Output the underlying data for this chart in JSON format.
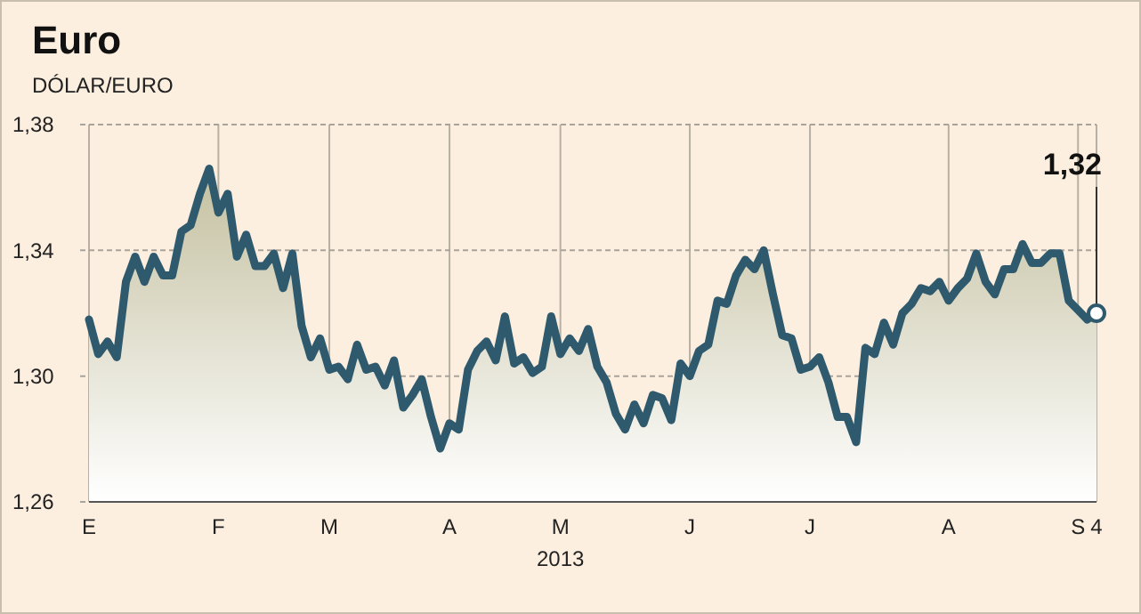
{
  "chart_data": {
    "type": "area",
    "title": "Euro",
    "subtitle": "DÓLAR/EURO",
    "xlabel": "2013",
    "categories": [
      "E",
      null,
      null,
      null,
      null,
      null,
      null,
      null,
      null,
      null,
      null,
      null,
      null,
      null,
      "F",
      null,
      null,
      null,
      null,
      null,
      null,
      null,
      null,
      null,
      null,
      null,
      "M",
      null,
      null,
      null,
      null,
      null,
      null,
      null,
      null,
      null,
      null,
      null,
      null,
      "A",
      null,
      null,
      null,
      null,
      null,
      null,
      null,
      null,
      null,
      null,
      null,
      "M",
      null,
      null,
      null,
      null,
      null,
      null,
      null,
      null,
      null,
      null,
      null,
      null,
      null,
      "J",
      null,
      null,
      null,
      null,
      null,
      null,
      null,
      null,
      null,
      null,
      null,
      null,
      "J",
      null,
      null,
      null,
      null,
      null,
      null,
      null,
      null,
      null,
      null,
      null,
      null,
      null,
      null,
      "A",
      null,
      null,
      null,
      null,
      null,
      null,
      null,
      null,
      null,
      null,
      null,
      null,
      null,
      "S",
      null,
      "4"
    ],
    "series": [
      {
        "color": "#2f5a6e",
        "values": [
          1.318,
          1.307,
          1.311,
          1.306,
          1.33,
          1.338,
          1.33,
          1.338,
          1.332,
          1.332,
          1.346,
          1.348,
          1.358,
          1.366,
          1.352,
          1.358,
          1.338,
          1.345,
          1.335,
          1.335,
          1.339,
          1.328,
          1.339,
          1.316,
          1.306,
          1.312,
          1.302,
          1.303,
          1.299,
          1.31,
          1.302,
          1.303,
          1.297,
          1.305,
          1.29,
          1.294,
          1.299,
          1.287,
          1.277,
          1.285,
          1.283,
          1.302,
          1.308,
          1.311,
          1.305,
          1.319,
          1.304,
          1.306,
          1.301,
          1.303,
          1.319,
          1.307,
          1.312,
          1.308,
          1.315,
          1.303,
          1.298,
          1.288,
          1.283,
          1.291,
          1.285,
          1.294,
          1.293,
          1.286,
          1.304,
          1.3,
          1.308,
          1.31,
          1.324,
          1.323,
          1.332,
          1.337,
          1.334,
          1.34,
          1.326,
          1.313,
          1.312,
          1.302,
          1.303,
          1.306,
          1.298,
          1.287,
          1.287,
          1.279,
          1.309,
          1.307,
          1.317,
          1.31,
          1.32,
          1.323,
          1.328,
          1.327,
          1.33,
          1.324,
          1.328,
          1.331,
          1.339,
          1.33,
          1.326,
          1.334,
          1.334,
          1.342,
          1.336,
          1.336,
          1.339,
          1.339,
          1.324,
          1.321,
          1.318,
          1.32
        ]
      }
    ],
    "ylim": [
      1.26,
      1.38
    ],
    "yticks": [
      {
        "value": 1.26,
        "label": "1,26"
      },
      {
        "value": 1.3,
        "label": "1,30"
      },
      {
        "value": 1.34,
        "label": "1,34"
      },
      {
        "value": 1.38,
        "label": "1,38"
      }
    ],
    "grid": true,
    "annotations": [
      {
        "text": "1,32",
        "x": "4",
        "y": 1.32
      }
    ]
  }
}
